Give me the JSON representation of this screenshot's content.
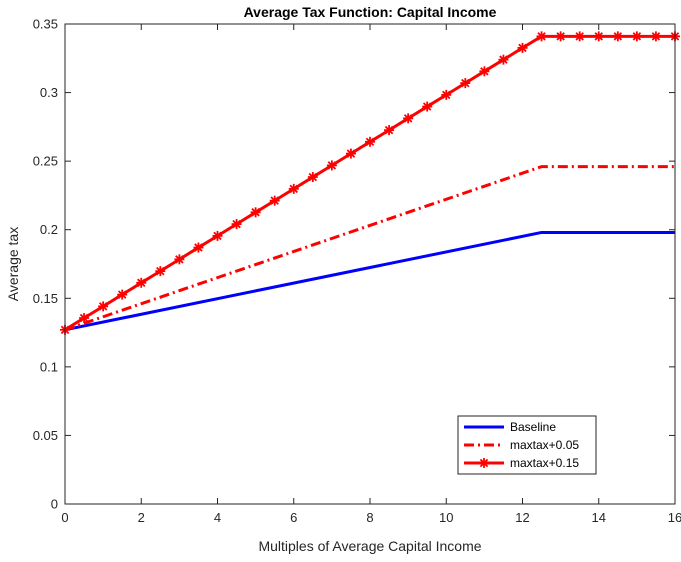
{
  "chart_data": {
    "type": "line",
    "title": "Average Tax Function: Capital Income",
    "xlabel": "Multiples of Average Capital Income",
    "ylabel": "Average tax",
    "xlim": [
      0,
      16
    ],
    "ylim": [
      0,
      0.35
    ],
    "xticks": [
      "0",
      "2",
      "4",
      "6",
      "8",
      "10",
      "12",
      "14",
      "16"
    ],
    "yticks": [
      "0",
      "0.05",
      "0.1",
      "0.15",
      "0.2",
      "0.25",
      "0.3",
      "0.35"
    ],
    "grid": false,
    "legend_position": "bottom-right",
    "series": [
      {
        "name": "Baseline",
        "color": "#0000ff",
        "style": "solid",
        "marker": "none",
        "x": [
          0,
          12.5,
          16
        ],
        "y": [
          0.127,
          0.198,
          0.198
        ]
      },
      {
        "name": "maxtax+0.05",
        "color": "#ff0000",
        "style": "dashdot",
        "marker": "none",
        "x": [
          0,
          12.5,
          16
        ],
        "y": [
          0.127,
          0.246,
          0.246
        ]
      },
      {
        "name": "maxtax+0.15",
        "color": "#ff0000",
        "style": "solid",
        "marker": "asterisk",
        "x": [
          0,
          0.5,
          1,
          1.5,
          2,
          2.5,
          3,
          3.5,
          4,
          4.5,
          5,
          5.5,
          6,
          6.5,
          7,
          7.5,
          8,
          8.5,
          9,
          9.5,
          10,
          10.5,
          11,
          11.5,
          12,
          12.5,
          13,
          13.5,
          14,
          14.5,
          15,
          15.5,
          16
        ],
        "y": [
          0.127,
          0.1356,
          0.1441,
          0.1527,
          0.1613,
          0.1698,
          0.1784,
          0.187,
          0.1955,
          0.2041,
          0.2127,
          0.2212,
          0.2298,
          0.2384,
          0.2469,
          0.2555,
          0.2641,
          0.2726,
          0.2812,
          0.2898,
          0.2983,
          0.3069,
          0.3155,
          0.324,
          0.3326,
          0.341,
          0.341,
          0.341,
          0.341,
          0.341,
          0.341,
          0.341,
          0.341
        ]
      }
    ]
  }
}
